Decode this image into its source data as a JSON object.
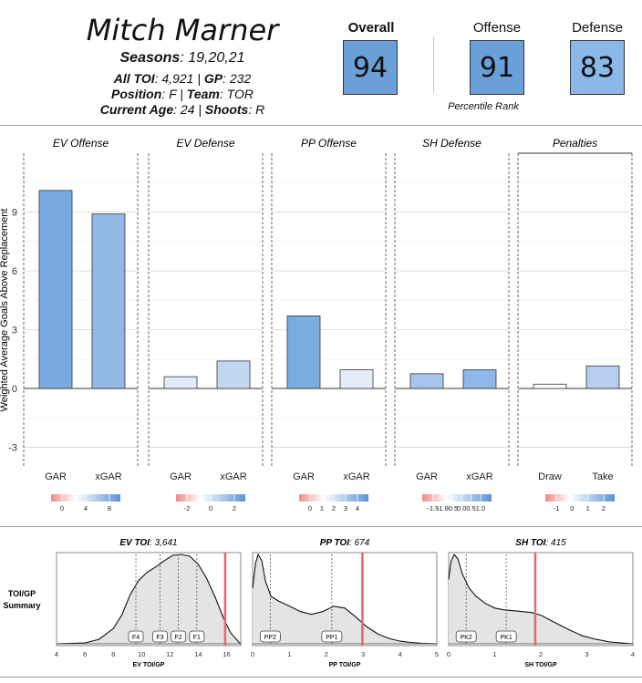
{
  "player": {
    "name": "Mitch Marner",
    "seasons_label": "Seasons",
    "seasons": "19,20,21",
    "toi_label": "All TOI",
    "toi": "4,921",
    "gp_label": "GP",
    "gp": "232",
    "position_label": "Position",
    "position": "F",
    "team_label": "Team",
    "team": "TOR",
    "age_label": "Current Age",
    "age": "24",
    "shoots_label": "Shoots",
    "shoots": "R"
  },
  "scores": {
    "overall_label": "Overall",
    "overall": "94",
    "offense_label": "Offense",
    "offense": "91",
    "defense_label": "Defense",
    "defense": "83",
    "note": "Percentile  Rank",
    "colors": {
      "overall": "#6a9fd8",
      "offense": "#6a9fd8",
      "defense": "#8cb8e8"
    }
  },
  "chart_data": [
    {
      "type": "bar",
      "ylabel": "Weighted Average Goals Above Replacement",
      "ylim": [
        -4,
        12
      ],
      "yticks": [
        -3,
        0,
        3,
        6,
        9
      ],
      "grid": true,
      "panels": [
        {
          "title": "EV Offense",
          "categories": [
            "GAR",
            "xGAR"
          ],
          "values": [
            10.1,
            8.9
          ],
          "colors": [
            "#79aae0",
            "#92b8e6"
          ],
          "legend": {
            "ticks": [
              "0",
              "4",
              "8"
            ]
          }
        },
        {
          "title": "EV Defense",
          "categories": [
            "GAR",
            "xGAR"
          ],
          "values": [
            0.6,
            1.4
          ],
          "colors": [
            "#e2ebf8",
            "#c4d7f1"
          ],
          "legend": {
            "ticks": [
              "-2",
              "0",
              "2"
            ]
          }
        },
        {
          "title": "PP Offense",
          "categories": [
            "GAR",
            "xGAR"
          ],
          "values": [
            3.7,
            0.95
          ],
          "colors": [
            "#7aabe1",
            "#e3ecf8"
          ],
          "legend": {
            "ticks": [
              "0",
              "1",
              "2",
              "3",
              "4"
            ]
          }
        },
        {
          "title": "SH Defense",
          "categories": [
            "GAR",
            "xGAR"
          ],
          "values": [
            0.75,
            0.95
          ],
          "colors": [
            "#a7c5ec",
            "#8fb7e7"
          ],
          "legend": {
            "ticks": [
              "-1.5",
              "-1.0",
              "-0.5",
              "0.0",
              "0.5",
              "1.0"
            ]
          }
        },
        {
          "title": "Penalties",
          "categories": [
            "Draw",
            "Take"
          ],
          "values": [
            0.22,
            1.15
          ],
          "colors": [
            "#ffffff",
            "#b7cef0"
          ],
          "legend": {
            "ticks": [
              "-1",
              "0",
              "1",
              "2"
            ]
          }
        }
      ]
    },
    {
      "type": "area",
      "row_label": "TOI/GP\nSummary",
      "panels": [
        {
          "title_label": "EV TOI",
          "title_value": "3,641",
          "xlabel": "EV TOI/GP",
          "xlim": [
            4,
            17
          ],
          "xticks": [
            "4",
            "6",
            "8",
            "10",
            "12",
            "14",
            "16"
          ],
          "player_value": 15.9,
          "markers": [
            {
              "label": "F4",
              "x": 9.6
            },
            {
              "label": "F3",
              "x": 11.3
            },
            {
              "label": "F2",
              "x": 12.6
            },
            {
              "label": "F1",
              "x": 13.9
            }
          ],
          "density_x": [
            4,
            6,
            7,
            8,
            8.6,
            9.2,
            9.8,
            10.4,
            11,
            11.6,
            12.2,
            12.8,
            13.4,
            14,
            14.6,
            15.2,
            15.8,
            16.3,
            16.8,
            17
          ],
          "density_y": [
            0,
            0.01,
            0.05,
            0.17,
            0.32,
            0.55,
            0.71,
            0.8,
            0.86,
            0.93,
            0.99,
            1.0,
            0.98,
            0.89,
            0.73,
            0.52,
            0.28,
            0.12,
            0.03,
            0
          ]
        },
        {
          "title_label": "PP TOI",
          "title_value": "674",
          "xlabel": "PP TOI/GP",
          "xlim": [
            0,
            5
          ],
          "xticks": [
            "0",
            "1",
            "2",
            "3",
            "4",
            "5"
          ],
          "player_value": 2.98,
          "markers": [
            {
              "label": "PP2",
              "x": 0.48
            },
            {
              "label": "PP1",
              "x": 2.15
            }
          ],
          "density_x": [
            0,
            0.08,
            0.15,
            0.25,
            0.35,
            0.5,
            0.7,
            1.0,
            1.3,
            1.6,
            1.9,
            2.2,
            2.5,
            2.8,
            3.1,
            3.4,
            3.7,
            4.0,
            4.3,
            4.6,
            5.0
          ],
          "density_y": [
            0.62,
            0.9,
            1.0,
            0.93,
            0.7,
            0.53,
            0.48,
            0.42,
            0.36,
            0.33,
            0.36,
            0.42,
            0.4,
            0.3,
            0.19,
            0.11,
            0.06,
            0.03,
            0.015,
            0.005,
            0
          ]
        },
        {
          "title_label": "SH TOI",
          "title_value": "415",
          "xlabel": "SH TOI/GP",
          "xlim": [
            0,
            4
          ],
          "xticks": [
            "0",
            "1",
            "2",
            "3",
            "4"
          ],
          "player_value": 1.88,
          "markers": [
            {
              "label": "PK2",
              "x": 0.38
            },
            {
              "label": "PK1",
              "x": 1.25
            }
          ],
          "density_x": [
            0,
            0.05,
            0.12,
            0.2,
            0.3,
            0.45,
            0.6,
            0.8,
            1.0,
            1.2,
            1.4,
            1.6,
            1.8,
            2.0,
            2.3,
            2.6,
            2.9,
            3.2,
            3.5,
            4.0
          ],
          "density_y": [
            0.72,
            0.92,
            1.0,
            0.95,
            0.78,
            0.62,
            0.53,
            0.45,
            0.4,
            0.38,
            0.37,
            0.36,
            0.35,
            0.32,
            0.24,
            0.16,
            0.09,
            0.05,
            0.02,
            0
          ]
        }
      ]
    }
  ]
}
